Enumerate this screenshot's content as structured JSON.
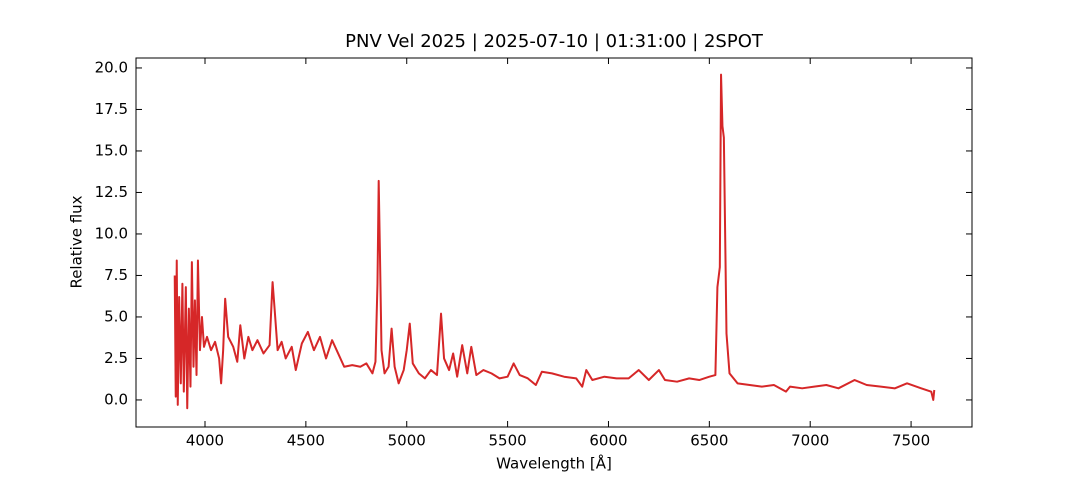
{
  "chart_data": {
    "type": "line",
    "title": "PNV Vel 2025 | 2025-07-10 | 01:31:00 | 2SPOT",
    "xlabel": "Wavelength [Å]",
    "ylabel": "Relative flux",
    "xlim": [
      3658,
      7802
    ],
    "ylim": [
      -1.63,
      20.6
    ],
    "xticks": [
      4000,
      4500,
      5000,
      5500,
      6000,
      6500,
      7000,
      7500
    ],
    "yticks": [
      {
        "value": 0,
        "label": "0.0"
      },
      2.5,
      {
        "value": 5,
        "label": "5.0"
      },
      7.5,
      {
        "value": 10,
        "label": "10.0"
      },
      12.5,
      {
        "value": 15,
        "label": "15.0"
      },
      17.5,
      {
        "value": 20,
        "label": "20.0"
      }
    ],
    "series": [
      {
        "color": "#d62728",
        "x": [
          3850,
          3855,
          3860,
          3865,
          3872,
          3880,
          3888,
          3895,
          3905,
          3912,
          3920,
          3928,
          3935,
          3943,
          3950,
          3958,
          3965,
          3975,
          3985,
          3995,
          4010,
          4030,
          4050,
          4070,
          4080,
          4090,
          4100,
          4115,
          4140,
          4160,
          4175,
          4195,
          4215,
          4235,
          4260,
          4290,
          4320,
          4335,
          4345,
          4360,
          4380,
          4400,
          4430,
          4450,
          4480,
          4510,
          4540,
          4570,
          4600,
          4630,
          4660,
          4690,
          4730,
          4770,
          4800,
          4830,
          4845,
          4855,
          4861,
          4867,
          4875,
          4890,
          4910,
          4925,
          4940,
          4960,
          4985,
          5000,
          5015,
          5030,
          5060,
          5090,
          5120,
          5150,
          5170,
          5185,
          5210,
          5230,
          5250,
          5275,
          5300,
          5320,
          5345,
          5380,
          5420,
          5460,
          5500,
          5530,
          5560,
          5600,
          5640,
          5670,
          5720,
          5780,
          5840,
          5870,
          5890,
          5920,
          5980,
          6040,
          6100,
          6150,
          6200,
          6250,
          6280,
          6340,
          6400,
          6450,
          6500,
          6530,
          6540,
          6552,
          6558,
          6565,
          6572,
          6585,
          6600,
          6640,
          6700,
          6760,
          6820,
          6880,
          6900,
          6960,
          7020,
          7080,
          7140,
          7220,
          7280,
          7350,
          7420,
          7480,
          7550,
          7600,
          7610,
          7615
        ],
        "values": [
          7.5,
          0.2,
          8.4,
          -0.3,
          6.2,
          1.0,
          7.0,
          0.5,
          6.8,
          -0.5,
          5.5,
          0.8,
          8.3,
          2.0,
          6.0,
          1.5,
          8.4,
          3.0,
          5.0,
          3.2,
          3.8,
          3.0,
          3.5,
          2.5,
          1.0,
          3.0,
          6.1,
          3.8,
          3.2,
          2.3,
          4.5,
          2.5,
          3.8,
          3.0,
          3.6,
          2.8,
          3.3,
          7.1,
          5.5,
          3.0,
          3.5,
          2.5,
          3.2,
          1.8,
          3.4,
          4.1,
          3.0,
          3.8,
          2.5,
          3.6,
          2.8,
          2.0,
          2.1,
          2.0,
          2.2,
          1.6,
          2.3,
          7.0,
          13.2,
          9.0,
          3.0,
          1.6,
          2.0,
          4.3,
          2.0,
          1.0,
          1.8,
          3.0,
          4.6,
          2.2,
          1.6,
          1.3,
          1.8,
          1.5,
          5.2,
          2.5,
          1.8,
          2.8,
          1.4,
          3.3,
          1.6,
          3.2,
          1.5,
          1.8,
          1.6,
          1.3,
          1.4,
          2.2,
          1.5,
          1.3,
          0.9,
          1.7,
          1.6,
          1.4,
          1.3,
          0.8,
          1.8,
          1.2,
          1.4,
          1.3,
          1.3,
          1.8,
          1.2,
          1.8,
          1.2,
          1.1,
          1.3,
          1.2,
          1.4,
          1.5,
          6.8,
          8.0,
          19.6,
          16.5,
          15.8,
          4.0,
          1.6,
          1.0,
          0.9,
          0.8,
          0.9,
          0.5,
          0.8,
          0.7,
          0.8,
          0.9,
          0.7,
          1.2,
          0.9,
          0.8,
          0.7,
          1.0,
          0.7,
          0.5,
          0.0,
          0.6
        ]
      }
    ]
  }
}
